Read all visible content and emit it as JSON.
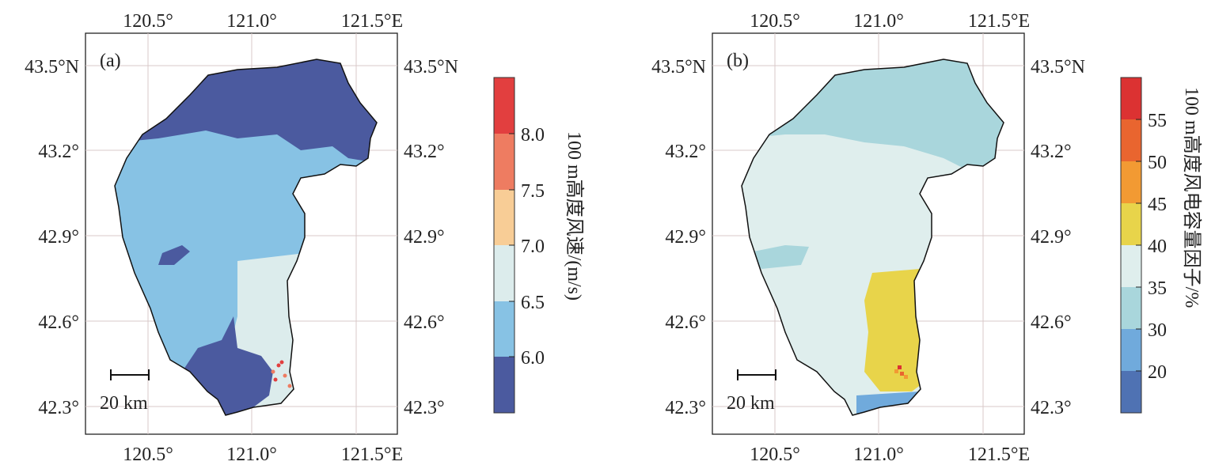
{
  "chart_data": [
    {
      "type": "map",
      "panel_label": "(a)",
      "lon_ticks": [
        "120.5°",
        "121.0°",
        "121.5°E"
      ],
      "lat_ticks": [
        "43.5°N",
        "43.2°",
        "42.9°",
        "42.6°",
        "42.3°"
      ],
      "scale_bar": "20 km",
      "colorbar": {
        "label": "100 m高度风速/(m/s)",
        "ticks": [
          "8.0",
          "7.5",
          "7.0",
          "6.5",
          "6.0"
        ],
        "colors": [
          "#e23f3f",
          "#ee7c61",
          "#f8cd96",
          "#dcecec",
          "#87c2e4",
          "#4b5a9f"
        ]
      }
    },
    {
      "type": "map",
      "panel_label": "(b)",
      "lon_ticks": [
        "120.5°",
        "121.0°",
        "121.5°E"
      ],
      "lat_ticks": [
        "43.5°N",
        "43.2°",
        "42.9°",
        "42.6°",
        "42.3°"
      ],
      "scale_bar": "20 km",
      "colorbar": {
        "label": "100 m高度风电容量因子/%",
        "ticks": [
          "55",
          "50",
          "45",
          "40",
          "35",
          "30",
          "20"
        ],
        "colors": [
          "#dc3232",
          "#e9652f",
          "#f29a33",
          "#e8d44a",
          "#dfeeed",
          "#a9d6dc",
          "#70aadc",
          "#4f72b3"
        ]
      }
    }
  ]
}
